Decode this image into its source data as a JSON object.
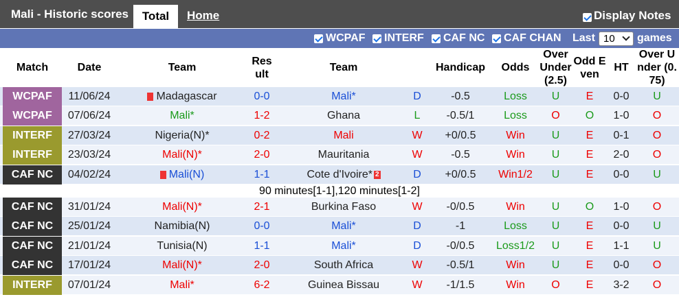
{
  "header": {
    "title": "Mali - Historic scores",
    "tabs": [
      "Total",
      "Home"
    ],
    "display_notes": "Display Notes"
  },
  "filters": {
    "options": [
      "WCPAF",
      "INTERF",
      "CAF NC",
      "CAF CHAN"
    ],
    "last_label": "Last",
    "last_value": "10",
    "games": "games"
  },
  "table": {
    "columns": [
      "Match",
      "Date",
      "Team",
      "Result",
      "Team",
      "Handicap",
      "Odds",
      "Over Under (2.5)",
      "Odd Even",
      "HT",
      "Over Under (0.75)"
    ],
    "rows": [
      {
        "cells": [
          "WCPAF",
          "11/06/24",
          "Madagascar",
          "0-0",
          "Mali*",
          "D",
          "-0.5",
          "Loss",
          "U",
          "E",
          "0-0",
          "U"
        ]
      },
      {
        "cells": [
          "WCPAF",
          "07/06/24",
          "Mali*",
          "1-2",
          "Ghana",
          "L",
          "-0.5/1",
          "Loss",
          "O",
          "O",
          "1-0",
          "O"
        ]
      },
      {
        "cells": [
          "INTERF",
          "27/03/24",
          "Nigeria(N)*",
          "0-2",
          "Mali",
          "W",
          "+0/0.5",
          "Win",
          "U",
          "E",
          "0-1",
          "O"
        ]
      },
      {
        "cells": [
          "INTERF",
          "23/03/24",
          "Mali(N)*",
          "2-0",
          "Mauritania",
          "W",
          "-0.5",
          "Win",
          "U",
          "E",
          "2-0",
          "O"
        ]
      },
      {
        "cells": [
          "CAF NC",
          "04/02/24",
          "Mali(N)",
          "1-1",
          "Cote d'Ivoire*",
          "D",
          "+0/0.5",
          "Win1/2",
          "U",
          "E",
          "0-0",
          "U"
        ],
        "away_card": "2",
        "note": "90 minutes[1-1],120 minutes[1-2]"
      },
      {
        "cells": [
          "CAF NC",
          "31/01/24",
          "Mali(N)*",
          "2-1",
          "Burkina Faso",
          "W",
          "-0/0.5",
          "Win",
          "U",
          "O",
          "1-0",
          "O"
        ]
      },
      {
        "cells": [
          "CAF NC",
          "25/01/24",
          "Namibia(N)",
          "0-0",
          "Mali*",
          "D",
          "-1",
          "Loss",
          "U",
          "E",
          "0-0",
          "U"
        ]
      },
      {
        "cells": [
          "CAF NC",
          "21/01/24",
          "Tunisia(N)",
          "1-1",
          "Mali*",
          "D",
          "-0/0.5",
          "Loss1/2",
          "U",
          "E",
          "1-1",
          "U"
        ]
      },
      {
        "cells": [
          "CAF NC",
          "17/01/24",
          "Mali(N)*",
          "2-0",
          "South Africa",
          "W",
          "-0.5/1",
          "Win",
          "U",
          "E",
          "0-0",
          "O"
        ]
      },
      {
        "cells": [
          "INTERF",
          "07/01/24",
          "Mali*",
          "6-2",
          "Guinea Bissau",
          "W",
          "-1/1.5",
          "Win",
          "O",
          "E",
          "3-2",
          "O"
        ]
      }
    ]
  }
}
